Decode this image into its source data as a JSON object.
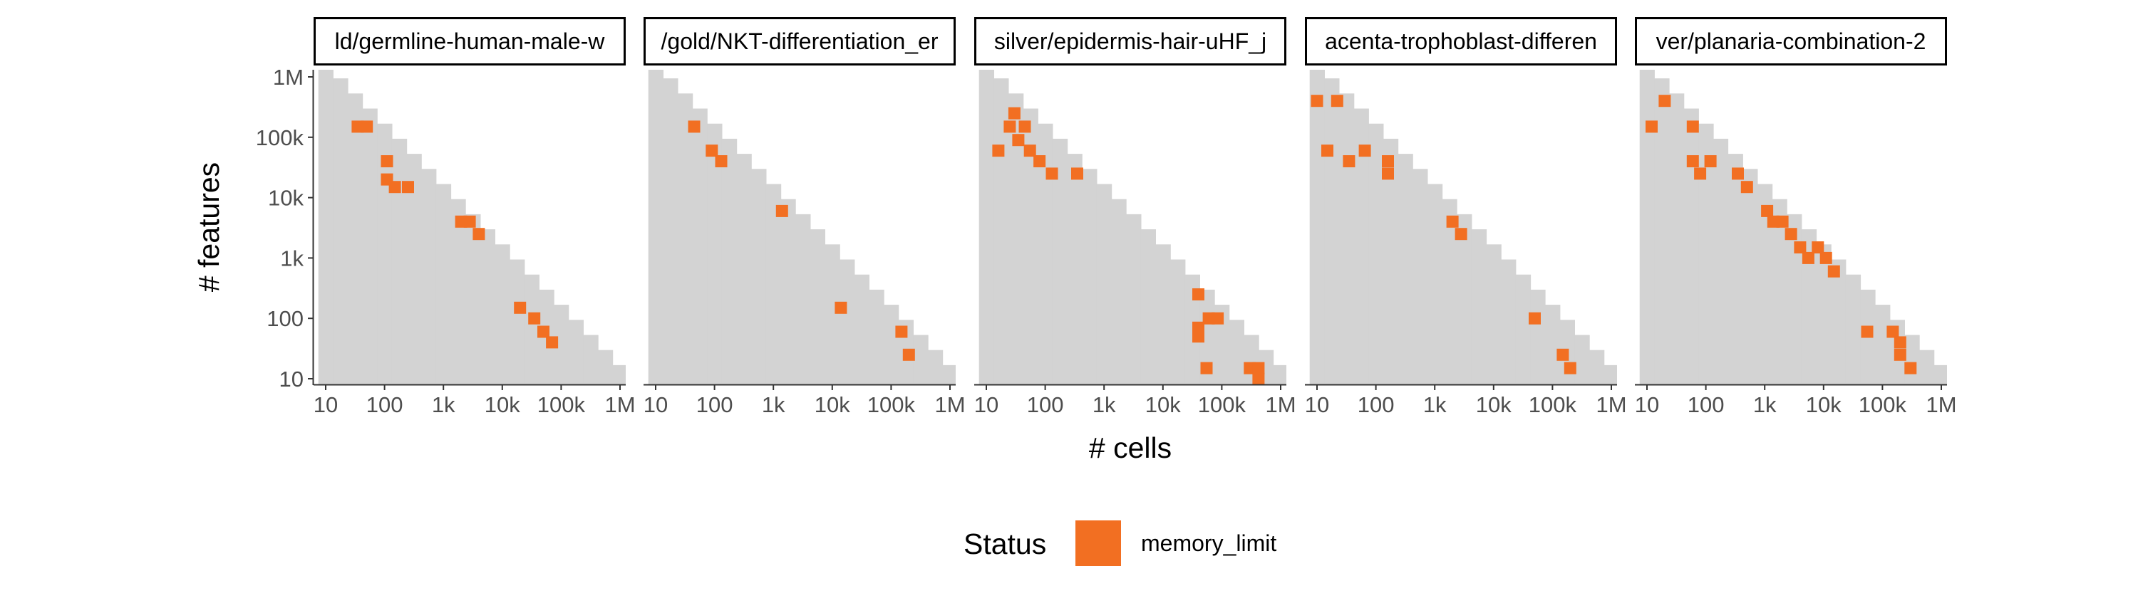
{
  "chart_data": {
    "type": "heatmap",
    "xlabel": "# cells",
    "ylabel": "# features",
    "x_scale": "log10",
    "y_scale": "log10",
    "xlim": [
      10,
      1000000
    ],
    "ylim": [
      10,
      1000000
    ],
    "x_ticks": [
      {
        "value": 10,
        "label": "10"
      },
      {
        "value": 100,
        "label": "100"
      },
      {
        "value": 1000,
        "label": "1k"
      },
      {
        "value": 10000,
        "label": "10k"
      },
      {
        "value": 100000,
        "label": "100k"
      },
      {
        "value": 1000000,
        "label": "1M"
      }
    ],
    "y_ticks": [
      {
        "value": 10,
        "label": "10"
      },
      {
        "value": 100,
        "label": "100"
      },
      {
        "value": 1000,
        "label": "1k"
      },
      {
        "value": 10000,
        "label": "10k"
      },
      {
        "value": 100000,
        "label": "100k"
      },
      {
        "value": 1000000,
        "label": "1M"
      }
    ],
    "grid": false,
    "background_region": "cells with # cells × # features up to roughly 10 million, plus the largest row at 1M features",
    "background_color": "#d3d3d3",
    "legend": {
      "title": "Status",
      "position": "bottom",
      "entries": [
        {
          "label": "memory_limit",
          "color": "#f26f22"
        }
      ]
    },
    "panels": [
      {
        "title": "ld/germline-human-male-w",
        "memory_limit_points": [
          {
            "x": 35,
            "y": 150000
          },
          {
            "x": 50,
            "y": 150000
          },
          {
            "x": 110,
            "y": 40000
          },
          {
            "x": 110,
            "y": 20000
          },
          {
            "x": 150,
            "y": 15000
          },
          {
            "x": 250,
            "y": 15000
          },
          {
            "x": 2000,
            "y": 4000
          },
          {
            "x": 2800,
            "y": 4000
          },
          {
            "x": 4000,
            "y": 2500
          },
          {
            "x": 20000,
            "y": 150
          },
          {
            "x": 35000,
            "y": 100
          },
          {
            "x": 50000,
            "y": 60
          },
          {
            "x": 70000,
            "y": 40
          }
        ]
      },
      {
        "title": "/gold/NKT-differentiation_er",
        "memory_limit_points": [
          {
            "x": 45,
            "y": 150000
          },
          {
            "x": 90,
            "y": 60000
          },
          {
            "x": 130,
            "y": 40000
          },
          {
            "x": 1400,
            "y": 6000
          },
          {
            "x": 14000,
            "y": 150
          },
          {
            "x": 150000,
            "y": 60
          },
          {
            "x": 200000,
            "y": 25
          }
        ]
      },
      {
        "title": "silver/epidermis-hair-uHF_j",
        "memory_limit_points": [
          {
            "x": 16,
            "y": 60000
          },
          {
            "x": 25,
            "y": 150000
          },
          {
            "x": 30,
            "y": 250000
          },
          {
            "x": 35,
            "y": 90000
          },
          {
            "x": 45,
            "y": 150000
          },
          {
            "x": 55,
            "y": 60000
          },
          {
            "x": 80,
            "y": 40000
          },
          {
            "x": 130,
            "y": 25000
          },
          {
            "x": 350,
            "y": 25000
          },
          {
            "x": 40000,
            "y": 250
          },
          {
            "x": 60000,
            "y": 100
          },
          {
            "x": 85000,
            "y": 100
          },
          {
            "x": 40000,
            "y": 70
          },
          {
            "x": 40000,
            "y": 50
          },
          {
            "x": 55000,
            "y": 15
          },
          {
            "x": 300000,
            "y": 15
          },
          {
            "x": 420000,
            "y": 15
          },
          {
            "x": 420000,
            "y": 10
          }
        ]
      },
      {
        "title": "acenta-trophoblast-differen",
        "memory_limit_points": [
          {
            "x": 10,
            "y": 400000
          },
          {
            "x": 22,
            "y": 400000
          },
          {
            "x": 15,
            "y": 60000
          },
          {
            "x": 35,
            "y": 40000
          },
          {
            "x": 65,
            "y": 60000
          },
          {
            "x": 160,
            "y": 40000
          },
          {
            "x": 160,
            "y": 25000
          },
          {
            "x": 2000,
            "y": 4000
          },
          {
            "x": 2800,
            "y": 2500
          },
          {
            "x": 50000,
            "y": 100
          },
          {
            "x": 150000,
            "y": 25
          },
          {
            "x": 200000,
            "y": 15
          }
        ]
      },
      {
        "title": "ver/planaria-combination-2",
        "memory_limit_points": [
          {
            "x": 12,
            "y": 150000
          },
          {
            "x": 20,
            "y": 400000
          },
          {
            "x": 60,
            "y": 150000
          },
          {
            "x": 60,
            "y": 40000
          },
          {
            "x": 80,
            "y": 25000
          },
          {
            "x": 120,
            "y": 40000
          },
          {
            "x": 350,
            "y": 25000
          },
          {
            "x": 500,
            "y": 15000
          },
          {
            "x": 1100,
            "y": 6000
          },
          {
            "x": 1400,
            "y": 4000
          },
          {
            "x": 2000,
            "y": 4000
          },
          {
            "x": 2800,
            "y": 2500
          },
          {
            "x": 4000,
            "y": 1500
          },
          {
            "x": 5500,
            "y": 1000
          },
          {
            "x": 8000,
            "y": 1500
          },
          {
            "x": 11000,
            "y": 1000
          },
          {
            "x": 15000,
            "y": 600
          },
          {
            "x": 55000,
            "y": 60
          },
          {
            "x": 150000,
            "y": 60
          },
          {
            "x": 200000,
            "y": 40
          },
          {
            "x": 200000,
            "y": 25
          },
          {
            "x": 300000,
            "y": 15
          }
        ]
      }
    ]
  }
}
